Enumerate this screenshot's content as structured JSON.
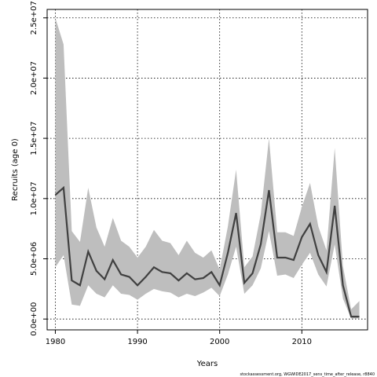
{
  "chart_data": {
    "type": "line",
    "xlabel": "Years",
    "ylabel": "Recruits (age 0)",
    "footnote": "stockassessment.org, WGWIDE2017_sens_time_after_release, r8840",
    "xlim": [
      1979,
      2018
    ],
    "ylim": [
      -900000,
      25700000
    ],
    "x_ticks": [
      1980,
      1990,
      2000,
      2010
    ],
    "x_tick_labels": [
      "1980",
      "1990",
      "2000",
      "2010"
    ],
    "y_ticks": [
      0,
      5000000,
      10000000,
      15000000,
      20000000,
      25000000
    ],
    "y_tick_labels": [
      "0.0e+00",
      "5.0e+06",
      "1.0e+07",
      "1.5e+07",
      "2.0e+07",
      "2.5e+07"
    ],
    "grid": true,
    "x": [
      1980,
      1981,
      1982,
      1983,
      1984,
      1985,
      1986,
      1987,
      1988,
      1989,
      1990,
      1991,
      1992,
      1993,
      1994,
      1995,
      1996,
      1997,
      1998,
      1999,
      2000,
      2001,
      2002,
      2003,
      2004,
      2005,
      2006,
      2007,
      2008,
      2009,
      2010,
      2011,
      2012,
      2013,
      2014,
      2015,
      2016,
      2017
    ],
    "series": [
      {
        "values": [
          10300000,
          10900000,
          3200000,
          2800000,
          5600000,
          4000000,
          3300000,
          4900000,
          3700000,
          3500000,
          2800000,
          3500000,
          4300000,
          3900000,
          3800000,
          3200000,
          3800000,
          3300000,
          3400000,
          3900000,
          2800000,
          5500000,
          8800000,
          3000000,
          3800000,
          6200000,
          10700000,
          5100000,
          5100000,
          4900000,
          6800000,
          7900000,
          5300000,
          3900000,
          9400000,
          2800000,
          200000,
          200000
        ],
        "lower": [
          4300000,
          5300000,
          1200000,
          1100000,
          2800000,
          2100000,
          1800000,
          2800000,
          2100000,
          2000000,
          1600000,
          2100000,
          2500000,
          2300000,
          2200000,
          1800000,
          2100000,
          1900000,
          2200000,
          2600000,
          1900000,
          3700000,
          6000000,
          2100000,
          2800000,
          4200000,
          7300000,
          3600000,
          3700000,
          3400000,
          4500000,
          5500000,
          3700000,
          2700000,
          6200000,
          1700000,
          50000,
          50000
        ],
        "upper": [
          25000000,
          22800000,
          7300000,
          6400000,
          10900000,
          7600000,
          6000000,
          8400000,
          6500000,
          6000000,
          5100000,
          6000000,
          7400000,
          6500000,
          6300000,
          5300000,
          6500000,
          5500000,
          5100000,
          5700000,
          4100000,
          7700000,
          12400000,
          4300000,
          5200000,
          8700000,
          15000000,
          7200000,
          7200000,
          6900000,
          9300000,
          11300000,
          7700000,
          5700000,
          14200000,
          4400000,
          800000,
          1500000
        ]
      }
    ]
  }
}
